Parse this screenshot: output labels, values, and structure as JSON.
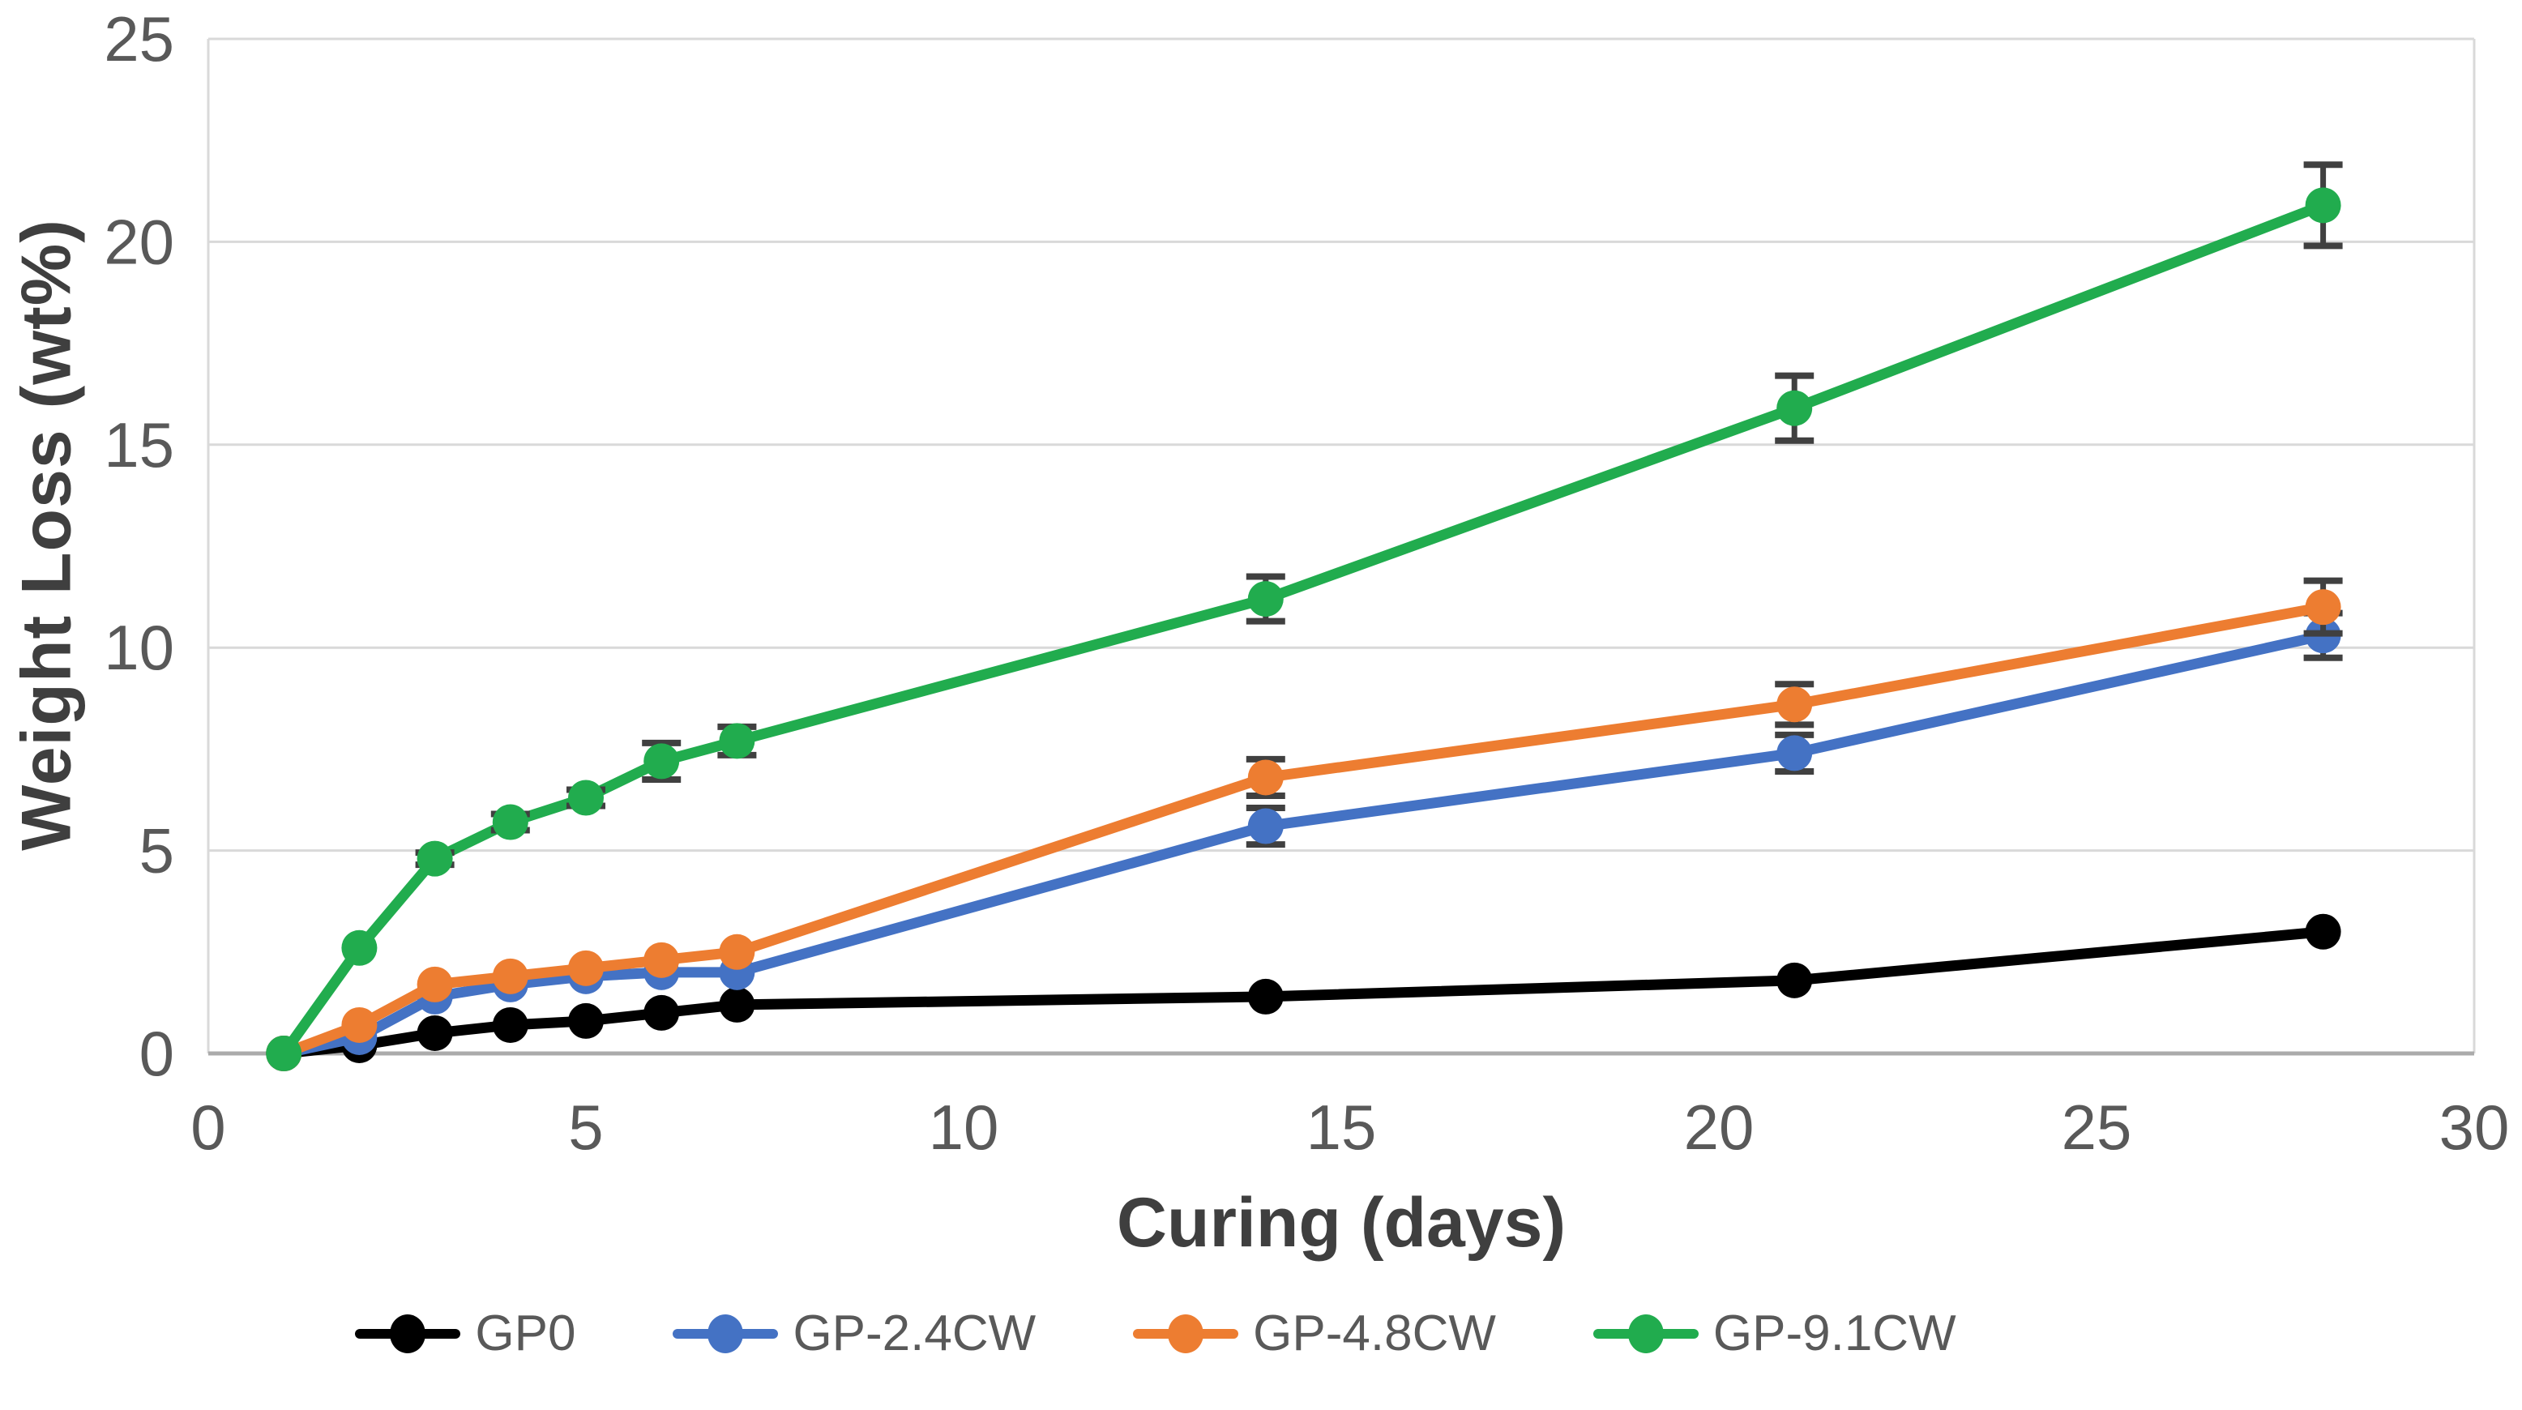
{
  "chart_data": {
    "type": "line",
    "title": "",
    "xlabel": "Curing (days)",
    "ylabel": "Weight Loss (wt%)",
    "xlim": [
      0,
      30
    ],
    "ylim": [
      0,
      25
    ],
    "x_ticks": [
      0,
      5,
      10,
      15,
      20,
      25,
      30
    ],
    "y_ticks": [
      0,
      5,
      10,
      15,
      20,
      25
    ],
    "grid": "horizontal",
    "legend_position": "bottom",
    "x": [
      1,
      2,
      3,
      4,
      5,
      6,
      7,
      14,
      21,
      28
    ],
    "series": [
      {
        "name": "GP0",
        "color": "#000000",
        "values": [
          0,
          0.2,
          0.5,
          0.7,
          0.8,
          1.0,
          1.2,
          1.4,
          1.8,
          3.0
        ],
        "errors": [
          0,
          0,
          0,
          0,
          0,
          0,
          0,
          0,
          0,
          0
        ]
      },
      {
        "name": "GP-2.4CW",
        "color": "#4472C4",
        "values": [
          0,
          0.4,
          1.4,
          1.7,
          1.9,
          2.0,
          2.0,
          5.6,
          7.4,
          10.3
        ],
        "errors": [
          0,
          0,
          0,
          0,
          0,
          0,
          0,
          0.45,
          0.45,
          0.55
        ]
      },
      {
        "name": "GP-4.8CW",
        "color": "#ED7D31",
        "values": [
          0,
          0.7,
          1.7,
          1.9,
          2.1,
          2.3,
          2.5,
          6.8,
          8.6,
          11.0
        ],
        "errors": [
          0,
          0,
          0,
          0,
          0,
          0,
          0,
          0.45,
          0.5,
          0.65
        ]
      },
      {
        "name": "GP-9.1CW",
        "color": "#21AC4E",
        "values": [
          0,
          2.6,
          4.8,
          5.7,
          6.3,
          7.2,
          7.7,
          11.2,
          15.9,
          20.9
        ],
        "errors": [
          0,
          0,
          0.15,
          0.2,
          0.2,
          0.45,
          0.35,
          0.55,
          0.8,
          1.0
        ]
      }
    ],
    "style": {
      "grid_color": "#D9D9D9",
      "axis_color": "#ABABAB",
      "border_color": "#D9D9D9",
      "tick_text_color": "#595959",
      "error_bar_color": "#404040"
    }
  }
}
